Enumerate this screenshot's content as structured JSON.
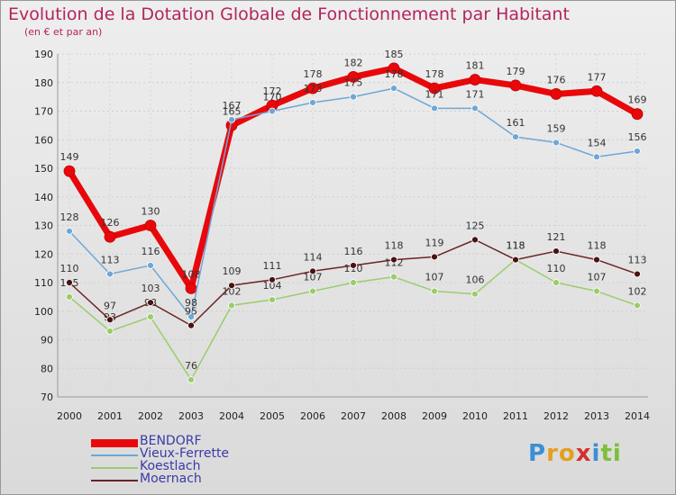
{
  "title": "Evolution de la Dotation Globale de Fonctionnement par Habitant",
  "subtitle": "(en € et par an)",
  "logo": [
    "P",
    "r",
    "o",
    "x",
    "i",
    "t",
    "i"
  ],
  "logo_colors": [
    "#3b8fd4",
    "#e3a020",
    "#e3a020",
    "#d43030",
    "#3b8fd4",
    "#7cbf3a",
    "#7cbf3a"
  ],
  "chart_data": {
    "type": "line",
    "title": "Evolution de la Dotation Globale de Fonctionnement par Habitant",
    "ylabel": "(en € et par an)",
    "xlabel": "",
    "x": [
      "2000",
      "2001",
      "2002",
      "2003",
      "2004",
      "2005",
      "2006",
      "2007",
      "2008",
      "2009",
      "2010",
      "2011",
      "2012",
      "2013",
      "2014"
    ],
    "ylim": [
      70,
      190
    ],
    "yticks": [
      70,
      80,
      90,
      100,
      110,
      120,
      130,
      140,
      150,
      160,
      170,
      180,
      190
    ],
    "series": [
      {
        "name": "BENDORF",
        "color": "#e8080b",
        "width": 7,
        "labelDy": -12,
        "values": [
          149,
          126,
          130,
          108,
          165,
          172,
          178,
          182,
          185,
          178,
          181,
          179,
          176,
          177,
          169
        ]
      },
      {
        "name": "Vieux-Ferrette",
        "color": "#6ea7d6",
        "width": 1.5,
        "labelDy": -12,
        "values": [
          128,
          113,
          116,
          98,
          167,
          170,
          173,
          175,
          178,
          171,
          171,
          161,
          159,
          154,
          156
        ]
      },
      {
        "name": "Koestlach",
        "color": "#9acd6a",
        "width": 1.5,
        "labelDy": -12,
        "values": [
          105,
          93,
          98,
          76,
          102,
          104,
          107,
          110,
          112,
          107,
          106,
          118,
          110,
          107,
          102
        ]
      },
      {
        "name": "Moernach",
        "color": "#6b2323",
        "width": 1.5,
        "labelDy": -12,
        "values": [
          110,
          97,
          103,
          95,
          109,
          111,
          114,
          116,
          118,
          119,
          125,
          118,
          121,
          118,
          113
        ]
      }
    ],
    "legend_position": "bottom-left"
  }
}
